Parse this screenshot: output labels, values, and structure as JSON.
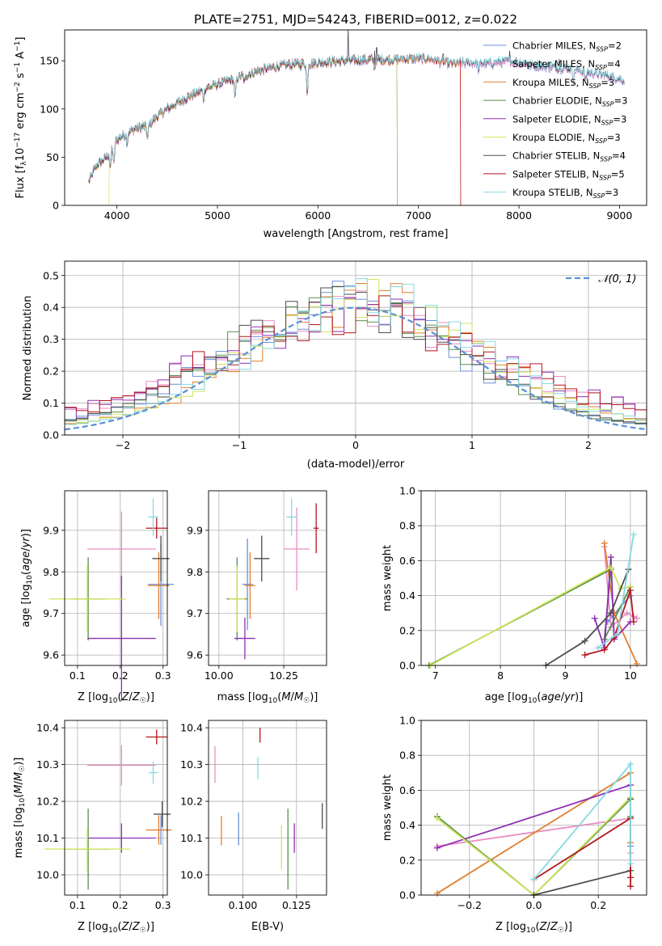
{
  "figure_title": "PLATE=2751, MJD=54243, FIBERID=0012, z=0.022",
  "palette": {
    "Chabrier MILES": "#6d8fd8",
    "Salpeter MILES": "#e98ec3",
    "Kroupa MILES": "#e0802e",
    "Chabrier ELODIE": "#5a8f4e",
    "Salpeter ELODIE": "#8e2fb3",
    "Kroupa ELODIE": "#cfe55a",
    "Chabrier STELIB": "#4d4d4d",
    "Salpeter STELIB": "#b3161e",
    "Kroupa STELIB": "#86d9e3"
  },
  "chart_data": [
    {
      "id": "spectrum",
      "type": "line",
      "xlabel": "wavelength [Angstrom, rest frame]",
      "ylabel": "Flux [f_λ10^-17 erg cm^-2 s^-1 A^-1]",
      "xlim": [
        3480,
        9270
      ],
      "ylim": [
        0,
        182
      ],
      "xticks": [
        4000,
        5000,
        6000,
        7000,
        8000,
        9000
      ],
      "yticks": [
        0,
        50,
        100,
        150
      ],
      "grid": false,
      "legend_position": "upper-right",
      "series": [
        {
          "name": "Chabrier MILES, N_SSP=2",
          "start": 3720,
          "end": 9050
        },
        {
          "name": "Salpeter MILES, N_SSP=4",
          "start": 3720,
          "end": 9050
        },
        {
          "name": "Kroupa MILES, N_SSP=3",
          "start": 3720,
          "end": 7420
        },
        {
          "name": "Chabrier ELODIE, N_SSP=3",
          "start": 3720,
          "end": 6790
        },
        {
          "name": "Salpeter ELODIE, N_SSP=3",
          "start": 3720,
          "end": 6790
        },
        {
          "name": "Kroupa ELODIE, N_SSP=3",
          "start": 3920,
          "end": 6790
        },
        {
          "name": "Chabrier STELIB, N_SSP=4",
          "start": 3720,
          "end": 9050
        },
        {
          "name": "Salpeter STELIB, N_SSP=5",
          "start": 3720,
          "end": 7420
        },
        {
          "name": "Kroupa STELIB, N_SSP=3",
          "start": 3720,
          "end": 9050
        }
      ],
      "continuum": [
        [
          3720,
          25
        ],
        [
          3800,
          42
        ],
        [
          3900,
          50
        ],
        [
          3950,
          60
        ],
        [
          4000,
          68
        ],
        [
          4100,
          75
        ],
        [
          4200,
          80
        ],
        [
          4300,
          82
        ],
        [
          4400,
          92
        ],
        [
          4500,
          100
        ],
        [
          4700,
          112
        ],
        [
          4900,
          122
        ],
        [
          5100,
          129
        ],
        [
          5300,
          136
        ],
        [
          5500,
          142
        ],
        [
          5700,
          146
        ],
        [
          5900,
          147
        ],
        [
          6100,
          149
        ],
        [
          6300,
          150
        ],
        [
          6500,
          151
        ],
        [
          6700,
          151
        ],
        [
          6900,
          152
        ],
        [
          7100,
          152
        ],
        [
          7300,
          147
        ],
        [
          7500,
          148
        ],
        [
          7700,
          147
        ],
        [
          7900,
          150
        ],
        [
          8100,
          146
        ],
        [
          8300,
          144
        ],
        [
          8500,
          142
        ],
        [
          8700,
          138
        ],
        [
          8900,
          134
        ],
        [
          9050,
          130
        ]
      ],
      "absorption_lines": [
        [
          3934,
          20
        ],
        [
          3969,
          22
        ],
        [
          4102,
          10
        ],
        [
          4305,
          14
        ],
        [
          4861,
          10
        ],
        [
          5175,
          22
        ],
        [
          5270,
          8
        ],
        [
          5893,
          32
        ],
        [
          6563,
          10
        ],
        [
          7600,
          8
        ],
        [
          8542,
          12
        ],
        [
          8662,
          10
        ]
      ],
      "emission_spikes": [
        [
          6300,
          35
        ],
        [
          6563,
          18
        ],
        [
          6584,
          22
        ],
        [
          7246,
          12
        ],
        [
          7910,
          10
        ],
        [
          8400,
          8
        ]
      ]
    },
    {
      "id": "residuals",
      "type": "histogram",
      "xlabel": "(data-model)/error",
      "ylabel": "Normed distribution",
      "xlim": [
        -2.5,
        2.5
      ],
      "ylim": [
        0,
        0.545
      ],
      "xticks": [
        -2,
        -1,
        0,
        1,
        2
      ],
      "yticks": [
        0.0,
        0.1,
        0.2,
        0.3,
        0.4,
        0.5
      ],
      "grid": true,
      "legend_position": "upper-right",
      "reference_curve": "𝒩(0, 1)",
      "bin_width": 0.1
    },
    {
      "id": "age_vs_Z",
      "type": "errorbar",
      "xlabel": "Z [log10(Z/Z☉)]",
      "ylabel": "age  [log10(age/yr)]",
      "xlim": [
        0.07,
        0.31
      ],
      "ylim": [
        9.575,
        9.995
      ],
      "xticks": [
        0.1,
        0.2,
        0.3
      ],
      "yticks": [
        9.6,
        9.7,
        9.8,
        9.9
      ],
      "grid": true,
      "points": [
        {
          "series": "Chabrier MILES",
          "x": 0.295,
          "y": 9.77,
          "xerr": 0.03,
          "yerr": 0.1
        },
        {
          "series": "Salpeter MILES",
          "x": 0.203,
          "y": 9.855,
          "xerr": 0.08,
          "yerr": 0.09
        },
        {
          "series": "Kroupa MILES",
          "x": 0.29,
          "y": 9.767,
          "xerr": 0.025,
          "yerr": 0.08
        },
        {
          "series": "Chabrier ELODIE",
          "x": 0.125,
          "y": 9.735,
          "xerr": 0.04,
          "yerr": 0.1
        },
        {
          "series": "Salpeter ELODIE",
          "x": 0.203,
          "y": 9.64,
          "xerr": 0.08,
          "yerr": 0.15
        },
        {
          "series": "Kroupa ELODIE",
          "x": 0.123,
          "y": 9.735,
          "xerr": 0.09,
          "yerr": 0.08
        },
        {
          "series": "Chabrier STELIB",
          "x": 0.295,
          "y": 9.832,
          "xerr": 0.02,
          "yerr": 0.055
        },
        {
          "series": "Salpeter STELIB",
          "x": 0.285,
          "y": 9.905,
          "xerr": 0.025,
          "yerr": 0.025
        },
        {
          "series": "Kroupa STELIB",
          "x": 0.277,
          "y": 9.932,
          "xerr": 0.012,
          "yerr": 0.045
        }
      ]
    },
    {
      "id": "age_vs_mass",
      "type": "errorbar",
      "xlabel": "mass [log10(M/M☉)]",
      "ylabel": "",
      "xlim": [
        9.96,
        10.415
      ],
      "ylim": [
        9.575,
        9.995
      ],
      "xticks": [
        10.0,
        10.25
      ],
      "yticks": [
        9.6,
        9.7,
        9.8,
        9.9
      ],
      "grid": true,
      "points": [
        {
          "series": "Chabrier MILES",
          "x": 10.11,
          "y": 9.77,
          "xerr": 0.02,
          "yerr": 0.11
        },
        {
          "series": "Salpeter MILES",
          "x": 10.3,
          "y": 9.855,
          "xerr": 0.05,
          "yerr": 0.1
        },
        {
          "series": "Kroupa MILES",
          "x": 10.12,
          "y": 9.767,
          "xerr": 0.02,
          "yerr": 0.08
        },
        {
          "series": "Chabrier ELODIE",
          "x": 10.07,
          "y": 9.735,
          "xerr": 0.04,
          "yerr": 0.1
        },
        {
          "series": "Salpeter ELODIE",
          "x": 10.1,
          "y": 9.64,
          "xerr": 0.04,
          "yerr": 0.05
        },
        {
          "series": "Kroupa ELODIE",
          "x": 10.07,
          "y": 9.735,
          "xerr": 0.03,
          "yerr": 0.08
        },
        {
          "series": "Chabrier STELIB",
          "x": 10.165,
          "y": 9.832,
          "xerr": 0.03,
          "yerr": 0.055
        },
        {
          "series": "Salpeter STELIB",
          "x": 10.375,
          "y": 9.905,
          "xerr": 0.01,
          "yerr": 0.06
        },
        {
          "series": "Kroupa STELIB",
          "x": 10.28,
          "y": 9.932,
          "xerr": 0.02,
          "yerr": 0.045
        }
      ]
    },
    {
      "id": "weights_vs_age",
      "type": "line",
      "xlabel": "age  [log10(age/yr)]",
      "ylabel": "mass weight",
      "xlim": [
        6.78,
        10.25
      ],
      "ylim": [
        0,
        1.0
      ],
      "xticks": [
        7,
        8,
        9,
        10
      ],
      "yticks": [
        0.0,
        0.2,
        0.4,
        0.6,
        0.8,
        1.0
      ],
      "grid": true,
      "series": [
        {
          "series": "Chabrier MILES",
          "x": [
            9.65,
            10.0
          ],
          "y": [
            0.25,
            0.4
          ]
        },
        {
          "series": "Salpeter MILES",
          "x": [
            9.6,
            9.7,
            9.95,
            10.05,
            10.1
          ],
          "y": [
            0.68,
            0.22,
            0.3,
            0.28,
            0.27
          ]
        },
        {
          "series": "Kroupa MILES",
          "x": [
            9.6,
            9.75,
            10.1
          ],
          "y": [
            0.7,
            0.3,
            0.01
          ]
        },
        {
          "series": "Chabrier ELODIE",
          "x": [
            6.9,
            9.7,
            9.6,
            10.0
          ],
          "y": [
            0.0,
            0.55,
            0.15,
            0.45
          ]
        },
        {
          "series": "Salpeter ELODIE",
          "x": [
            9.45,
            9.6,
            9.7,
            9.75,
            10.0
          ],
          "y": [
            0.27,
            0.1,
            0.62,
            0.15,
            0.25
          ]
        },
        {
          "series": "Kroupa ELODIE",
          "x": [
            6.92,
            9.7,
            9.85,
            10.0
          ],
          "y": [
            0.0,
            0.56,
            0.44,
            0.45
          ]
        },
        {
          "series": "Chabrier STELIB",
          "x": [
            8.7,
            9.3,
            9.7,
            9.97
          ],
          "y": [
            0.0,
            0.14,
            0.3,
            0.55
          ]
        },
        {
          "series": "Salpeter STELIB",
          "x": [
            9.3,
            9.6,
            9.75,
            10.0,
            10.05
          ],
          "y": [
            0.06,
            0.09,
            0.16,
            0.43,
            0.25
          ]
        },
        {
          "series": "Kroupa STELIB",
          "x": [
            9.5,
            9.8,
            10.05
          ],
          "y": [
            0.1,
            0.18,
            0.75
          ]
        }
      ]
    },
    {
      "id": "mass_vs_Z",
      "type": "errorbar",
      "xlabel": "Z [log10(Z/Z☉)]",
      "ylabel": "mass [log10(M/M☉)]",
      "xlim": [
        0.07,
        0.31
      ],
      "ylim": [
        9.945,
        10.42
      ],
      "xticks": [
        0.1,
        0.2,
        0.3
      ],
      "yticks": [
        10.0,
        10.1,
        10.2,
        10.3,
        10.4
      ],
      "grid": true,
      "points": [
        {
          "series": "Chabrier MILES",
          "x": 0.295,
          "y": 10.122,
          "xerr": 0.025,
          "yerr": 0.04
        },
        {
          "series": "Salpeter MILES",
          "x": 0.203,
          "y": 10.298,
          "xerr": 0.08,
          "yerr": 0.055
        },
        {
          "series": "Kroupa MILES",
          "x": 0.29,
          "y": 10.122,
          "xerr": 0.03,
          "yerr": 0.04
        },
        {
          "series": "Chabrier ELODIE",
          "x": 0.125,
          "y": 10.07,
          "xerr": 0.05,
          "yerr": 0.11
        },
        {
          "series": "Salpeter ELODIE",
          "x": 0.203,
          "y": 10.1,
          "xerr": 0.08,
          "yerr": 0.04
        },
        {
          "series": "Kroupa ELODIE",
          "x": 0.123,
          "y": 10.07,
          "xerr": 0.1,
          "yerr": 0.06
        },
        {
          "series": "Chabrier STELIB",
          "x": 0.298,
          "y": 10.165,
          "xerr": 0.02,
          "yerr": 0.035
        },
        {
          "series": "Salpeter STELIB",
          "x": 0.285,
          "y": 10.375,
          "xerr": 0.025,
          "yerr": 0.02
        },
        {
          "series": "Kroupa STELIB",
          "x": 0.277,
          "y": 10.278,
          "xerr": 0.01,
          "yerr": 0.03
        }
      ]
    },
    {
      "id": "mass_vs_EBV",
      "type": "errorbar",
      "xlabel": "E(B-V)",
      "ylabel": "",
      "xlim": [
        0.084,
        0.139
      ],
      "ylim": [
        9.945,
        10.42
      ],
      "xticks": [
        0.1,
        0.125
      ],
      "yticks": [
        10.0,
        10.1,
        10.2,
        10.3,
        10.4
      ],
      "grid": true,
      "points": [
        {
          "series": "Chabrier MILES",
          "x": 0.098,
          "y": 10.125,
          "xerr": 0,
          "yerr": 0.045
        },
        {
          "series": "Salpeter MILES",
          "x": 0.087,
          "y": 10.3,
          "xerr": 0,
          "yerr": 0.05
        },
        {
          "series": "Kroupa MILES",
          "x": 0.09,
          "y": 10.12,
          "xerr": 0,
          "yerr": 0.04
        },
        {
          "series": "Chabrier ELODIE",
          "x": 0.121,
          "y": 10.07,
          "xerr": 0,
          "yerr": 0.11
        },
        {
          "series": "Salpeter ELODIE",
          "x": 0.124,
          "y": 10.1,
          "xerr": 0,
          "yerr": 0.04
        },
        {
          "series": "Kroupa ELODIE",
          "x": 0.118,
          "y": 10.075,
          "xerr": 0,
          "yerr": 0.06
        },
        {
          "series": "Chabrier STELIB",
          "x": 0.137,
          "y": 10.16,
          "xerr": 0,
          "yerr": 0.035
        },
        {
          "series": "Salpeter STELIB",
          "x": 0.108,
          "y": 10.38,
          "xerr": 0,
          "yerr": 0.02
        },
        {
          "series": "Kroupa STELIB",
          "x": 0.107,
          "y": 10.29,
          "xerr": 0,
          "yerr": 0.03
        }
      ]
    },
    {
      "id": "weights_vs_Z",
      "type": "line",
      "xlabel": "Z [log10(Z/Z☉)]",
      "ylabel": "mass weight",
      "xlim": [
        -0.35,
        0.35
      ],
      "ylim": [
        0,
        1.0
      ],
      "xticks": [
        -0.2,
        0.0,
        0.2
      ],
      "yticks": [
        0.0,
        0.2,
        0.4,
        0.6,
        0.8,
        1.0
      ],
      "grid": true,
      "series": [
        {
          "series": "Chabrier MILES",
          "x": [
            0.3,
            0.3
          ],
          "y": [
            0.3,
            0.28
          ]
        },
        {
          "series": "Salpeter MILES",
          "x": [
            -0.3,
            0.3,
            0.3
          ],
          "y": [
            0.28,
            0.44,
            0.24
          ]
        },
        {
          "series": "Kroupa MILES",
          "x": [
            -0.3,
            0.3,
            0.3
          ],
          "y": [
            0.01,
            0.7,
            0.3
          ]
        },
        {
          "series": "Chabrier ELODIE",
          "x": [
            -0.3,
            0.0,
            0.3,
            0.3
          ],
          "y": [
            0.45,
            0.0,
            0.55,
            0.45
          ]
        },
        {
          "series": "Salpeter ELODIE",
          "x": [
            -0.3,
            0.3,
            0.3
          ],
          "y": [
            0.27,
            0.63,
            0.1
          ]
        },
        {
          "series": "Kroupa ELODIE",
          "x": [
            -0.3,
            0.0,
            0.3,
            0.3
          ],
          "y": [
            0.44,
            0.0,
            0.56,
            0.44
          ]
        },
        {
          "series": "Chabrier STELIB",
          "x": [
            0.0,
            0.3,
            0.3
          ],
          "y": [
            0.0,
            0.14,
            0.55
          ]
        },
        {
          "series": "Salpeter STELIB",
          "x": [
            0.0,
            0.3,
            0.3,
            0.3
          ],
          "y": [
            0.09,
            0.44,
            0.05,
            0.1
          ]
        },
        {
          "series": "Kroupa STELIB",
          "x": [
            0.0,
            0.3,
            0.3
          ],
          "y": [
            0.09,
            0.75,
            0.18
          ]
        }
      ]
    }
  ]
}
